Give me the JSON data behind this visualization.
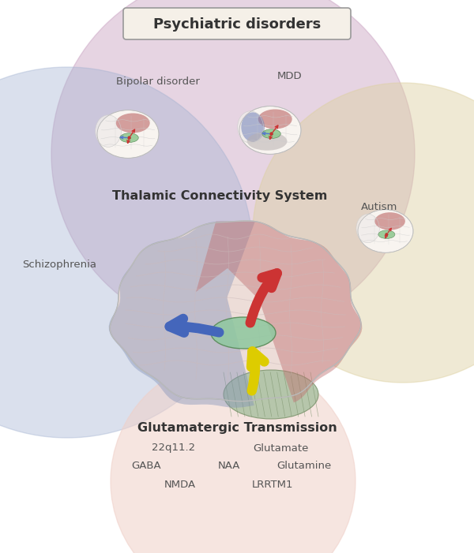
{
  "title": "Psychiatric disorders",
  "thalamic_label": "Thalamic Connectivity System",
  "glutamatergic_label": "Glutamatergic Transmission",
  "glutamatergic_terms_row1": [
    "22q11.2",
    "Glutamate"
  ],
  "glutamatergic_terms_row2": [
    "GABA",
    "NAA",
    "Glutamine"
  ],
  "glutamatergic_terms_row3": [
    "NMDA",
    "LRRTM1"
  ],
  "disorder_bipolar": "Bipolar disorder",
  "disorder_mdd": "MDD",
  "disorder_schizo": "Schizophrenia",
  "disorder_autism": "Autism",
  "bg_color": "#ffffff",
  "psychiatric_color": "#c8a0c0",
  "schizo_color": "#a0b0d0",
  "autism_color": "#ddd0a0",
  "glut_color": "#f0d0c8",
  "brain_base": "#f0e8e4",
  "brain_pink": "#e8d0cc",
  "red_region": "#c87070",
  "blue_region": "#8090c0",
  "green_thal": "#90c890",
  "cerebellum_color": "#a8c0a0",
  "arrow_blue": "#4466bb",
  "arrow_red": "#cc3333",
  "arrow_yellow": "#ddcc00",
  "text_dark": "#333333",
  "text_mid": "#555555"
}
